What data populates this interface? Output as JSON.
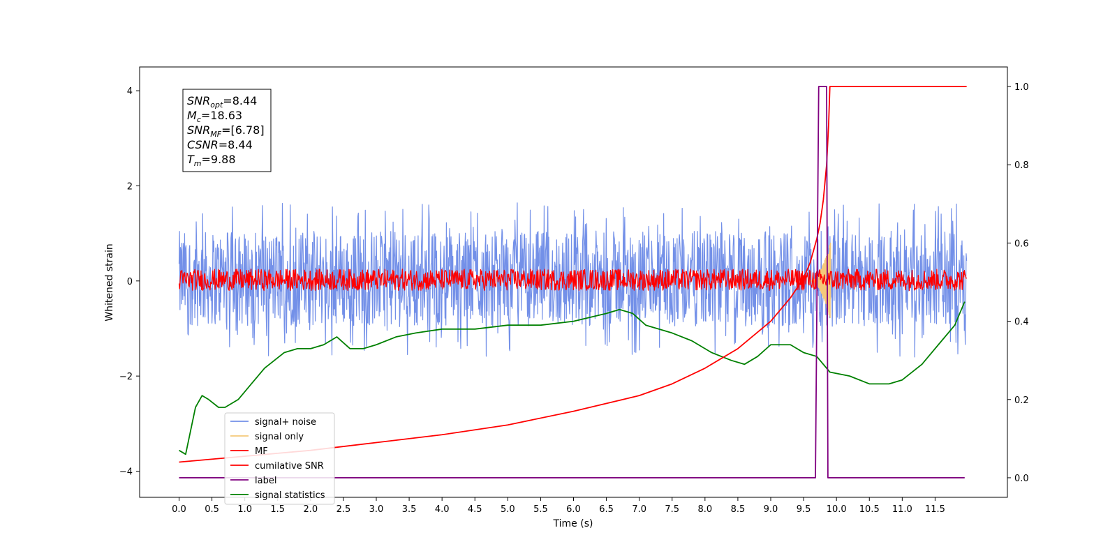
{
  "chart_data": {
    "type": "line",
    "xlabel": "Time (s)",
    "ylabel": "Whitened strain",
    "xlim": [
      -0.6,
      12.6
    ],
    "ylim": [
      -4.55,
      4.5
    ],
    "ylim_right": [
      -0.05,
      1.05
    ],
    "xticks": [
      "0.0",
      "0.5",
      "1.0",
      "1.5",
      "2.0",
      "2.5",
      "3.0",
      "3.5",
      "4.0",
      "4.5",
      "5.0",
      "5.5",
      "6.0",
      "6.5",
      "7.0",
      "7.5",
      "8.0",
      "8.5",
      "9.0",
      "9.5",
      "10.0",
      "10.5",
      "11.0",
      "11.5"
    ],
    "yticks_left": [
      "-4",
      "-2",
      "0",
      "2",
      "4"
    ],
    "yticks_right": [
      "0.0",
      "0.2",
      "0.4",
      "0.6",
      "0.8",
      "1.0"
    ],
    "grid": false,
    "legend_position": "lower-left",
    "annotation": {
      "lines": [
        {
          "sym": "SNR",
          "sub": "opt",
          "value": "=8.44"
        },
        {
          "sym": "M",
          "sub": "c",
          "value": "=18.63"
        },
        {
          "sym": "SNR",
          "sub": "MF",
          "value": "=[6.78]"
        },
        {
          "sym": "CSNR",
          "sub": "",
          "value": "=8.44"
        },
        {
          "sym": "T",
          "sub": "m",
          "value": "=9.88"
        }
      ]
    },
    "series": [
      {
        "name": "signal+ noise",
        "axis": "left",
        "color": "#7390e8",
        "kind": "noise",
        "t_range": [
          0,
          11.98
        ],
        "band": [
          -0.95,
          1.05
        ],
        "spikes_up_max": 1.65,
        "spikes_down_min": -1.6
      },
      {
        "name": "signal only",
        "axis": "left",
        "color": "#f5c97a",
        "kind": "chirp",
        "t_range": [
          9.6,
          9.92
        ],
        "amplitude_max": 0.9
      },
      {
        "name": "MF",
        "axis": "left",
        "color": "#ff0000",
        "kind": "noise",
        "t_range": [
          0,
          11.98
        ],
        "band": [
          -0.2,
          0.25
        ]
      },
      {
        "name": "cumilative SNR",
        "axis": "right",
        "color": "#ff0000",
        "x": [
          0.0,
          1.0,
          2.0,
          3.0,
          4.0,
          5.0,
          6.0,
          7.0,
          7.5,
          8.0,
          8.5,
          9.0,
          9.3,
          9.5,
          9.6,
          9.7,
          9.75,
          9.8,
          9.85,
          9.88,
          9.9,
          11.98
        ],
        "y": [
          0.04,
          0.055,
          0.07,
          0.09,
          0.11,
          0.135,
          0.17,
          0.21,
          0.24,
          0.28,
          0.33,
          0.4,
          0.46,
          0.51,
          0.55,
          0.61,
          0.65,
          0.71,
          0.8,
          0.9,
          1.0,
          1.0
        ]
      },
      {
        "name": "label",
        "axis": "right",
        "color": "#800080",
        "x": [
          0.0,
          9.68,
          9.73,
          9.85,
          9.87,
          9.92,
          11.95
        ],
        "y": [
          0.0,
          0.0,
          1.0,
          1.0,
          0.0,
          0.0,
          0.0
        ]
      },
      {
        "name": "signal statistics",
        "axis": "right",
        "color": "#008000",
        "x": [
          0.0,
          0.1,
          0.25,
          0.35,
          0.45,
          0.6,
          0.7,
          0.9,
          1.1,
          1.3,
          1.6,
          1.8,
          2.0,
          2.2,
          2.4,
          2.6,
          2.8,
          3.0,
          3.3,
          3.6,
          4.0,
          4.5,
          5.0,
          5.5,
          6.0,
          6.5,
          6.7,
          6.9,
          7.1,
          7.5,
          7.8,
          8.1,
          8.4,
          8.6,
          8.8,
          9.0,
          9.3,
          9.5,
          9.7,
          9.9,
          10.2,
          10.5,
          10.8,
          11.0,
          11.3,
          11.6,
          11.8,
          11.95
        ],
        "y": [
          0.07,
          0.06,
          0.18,
          0.21,
          0.2,
          0.18,
          0.18,
          0.2,
          0.24,
          0.28,
          0.32,
          0.33,
          0.33,
          0.34,
          0.36,
          0.33,
          0.33,
          0.34,
          0.36,
          0.37,
          0.38,
          0.38,
          0.39,
          0.39,
          0.4,
          0.42,
          0.43,
          0.42,
          0.39,
          0.37,
          0.35,
          0.32,
          0.3,
          0.29,
          0.31,
          0.34,
          0.34,
          0.32,
          0.31,
          0.27,
          0.26,
          0.24,
          0.24,
          0.25,
          0.29,
          0.35,
          0.39,
          0.45
        ]
      }
    ]
  }
}
